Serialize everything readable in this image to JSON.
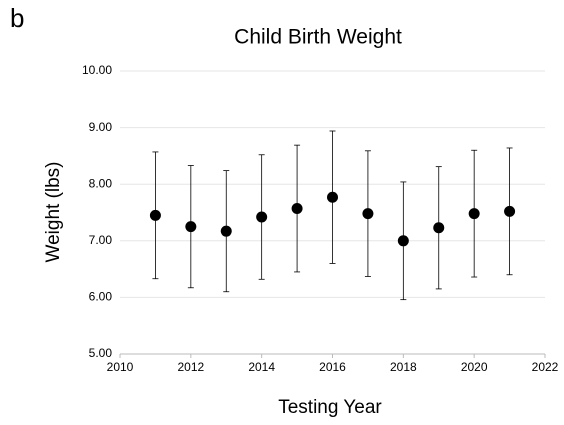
{
  "chart_data": {
    "type": "scatter",
    "panel_label": "b",
    "title": "Child Birth Weight",
    "xlabel": "Testing Year",
    "ylabel": "Weight (lbs)",
    "x": [
      2011,
      2012,
      2013,
      2014,
      2015,
      2016,
      2017,
      2018,
      2019,
      2020,
      2021
    ],
    "values": [
      7.45,
      7.25,
      7.17,
      7.42,
      7.57,
      7.77,
      7.48,
      7.0,
      7.23,
      7.48,
      7.52
    ],
    "errors": [
      1.12,
      1.08,
      1.07,
      1.1,
      1.12,
      1.17,
      1.11,
      1.04,
      1.08,
      1.12,
      1.12
    ],
    "color": "#000000",
    "xlim": [
      2010,
      2022
    ],
    "xticks": [
      2010,
      2012,
      2014,
      2016,
      2018,
      2020,
      2022
    ],
    "ylim": [
      5,
      10
    ],
    "yticks": [
      {
        "value": 5,
        "label": "5.00"
      },
      {
        "value": 6,
        "label": "6.00"
      },
      {
        "value": 7,
        "label": "7.00"
      },
      {
        "value": 8,
        "label": "8.00"
      },
      {
        "value": 9,
        "label": "9.00"
      },
      {
        "value": 10,
        "label": "10.00"
      }
    ],
    "grid": true
  }
}
